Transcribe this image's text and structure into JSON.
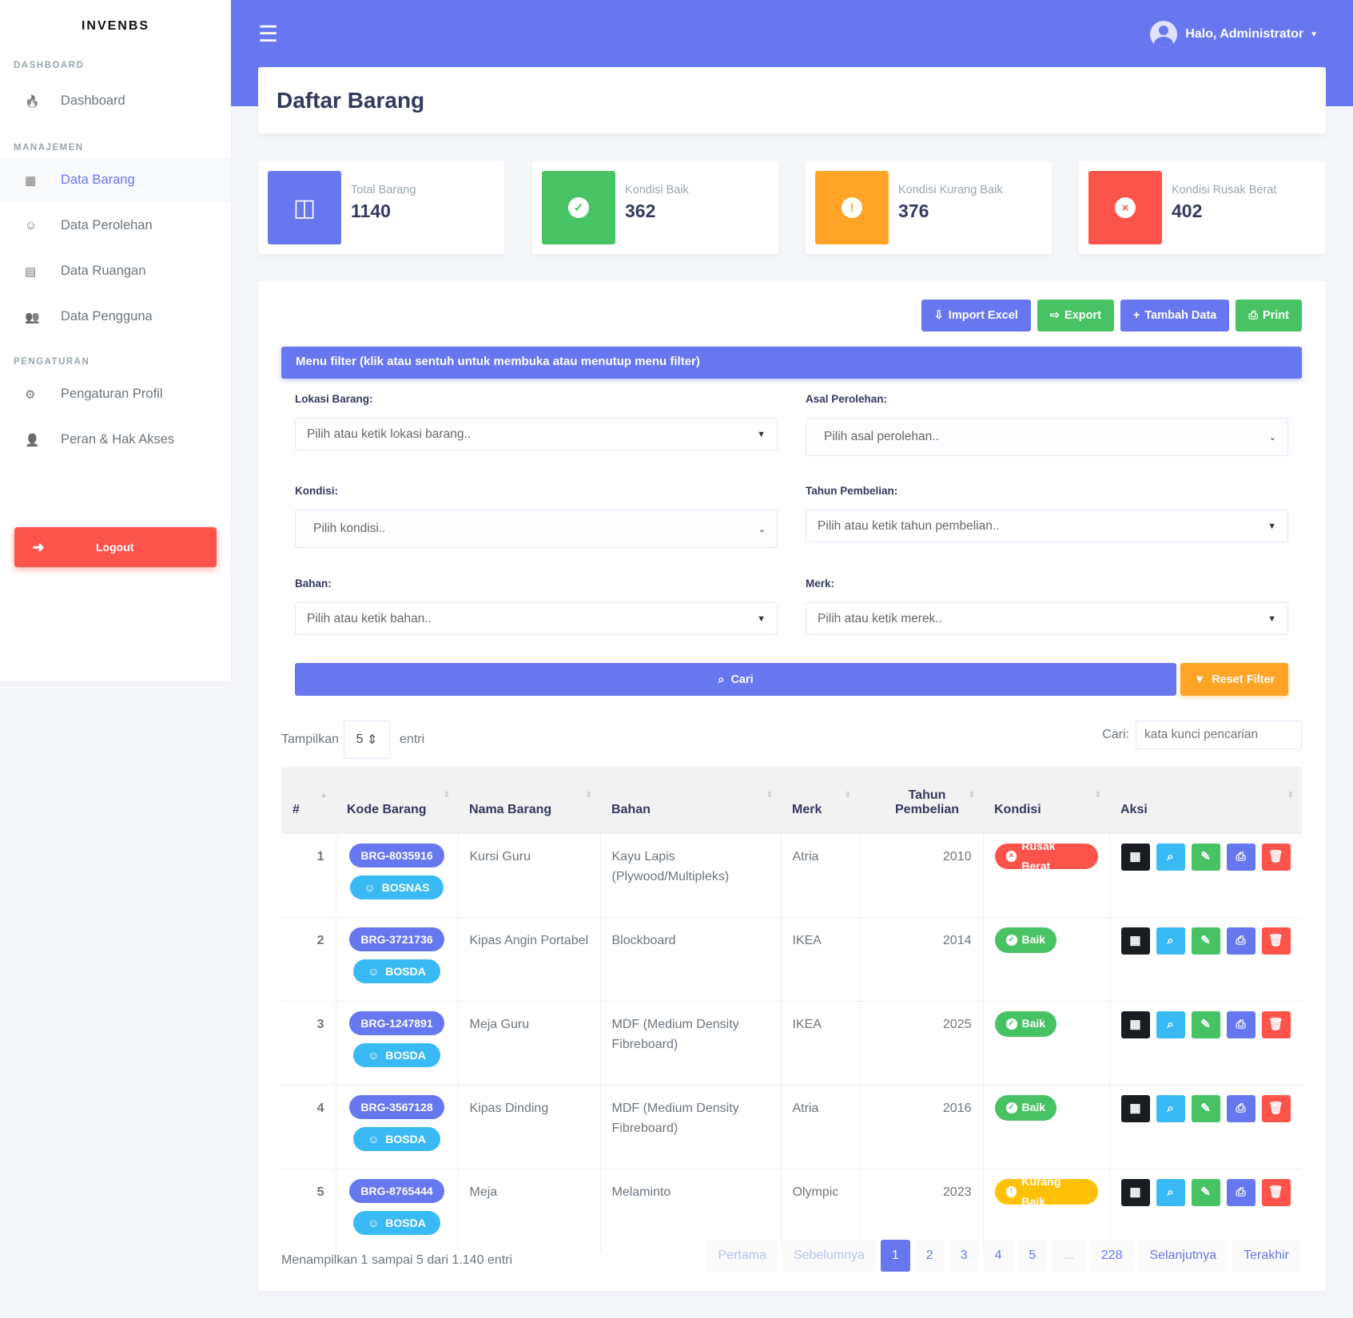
{
  "brand": "INVENBS",
  "sidebar": {
    "sections": [
      {
        "title": "DASHBOARD",
        "items": [
          {
            "label": "Dashboard",
            "icon": "fire-icon"
          }
        ]
      },
      {
        "title": "MANAJEMEN",
        "items": [
          {
            "label": "Data Barang",
            "icon": "boxes-icon"
          },
          {
            "label": "Data Perolehan",
            "icon": "smile-icon"
          },
          {
            "label": "Data Ruangan",
            "icon": "map-icon"
          },
          {
            "label": "Data Pengguna",
            "icon": "users-icon"
          }
        ]
      },
      {
        "title": "PENGATURAN",
        "items": [
          {
            "label": "Pengaturan Profil",
            "icon": "cog-icon"
          },
          {
            "label": "Peran & Hak Akses",
            "icon": "user-lock-icon"
          }
        ]
      }
    ],
    "logout": "Logout"
  },
  "topbar": {
    "user": "Halo, Administrator"
  },
  "page_title": "Daftar Barang",
  "stats": [
    {
      "label": "Total Barang",
      "value": "1140",
      "color": "#6777ef"
    },
    {
      "label": "Kondisi Baik",
      "value": "362",
      "color": "#47c363"
    },
    {
      "label": "Kondisi Kurang Baik",
      "value": "376",
      "color": "#ffa426"
    },
    {
      "label": "Kondisi Rusak Berat",
      "value": "402",
      "color": "#fc544b"
    }
  ],
  "actions": {
    "import": "Import Excel",
    "export": "Export",
    "add": "Tambah Data",
    "print": "Print"
  },
  "filter": {
    "title": "Menu filter (klik atau sentuh untuk membuka atau menutup menu filter)",
    "lokasi_label": "Lokasi Barang:",
    "lokasi_ph": "Pilih atau ketik lokasi barang..",
    "asal_label": "Asal Perolehan:",
    "asal_ph": "Pilih asal perolehan..",
    "kondisi_label": "Kondisi:",
    "kondisi_ph": "Pilih kondisi..",
    "tahun_label": "Tahun Pembelian:",
    "tahun_ph": "Pilih atau ketik tahun pembelian..",
    "bahan_label": "Bahan:",
    "bahan_ph": "Pilih atau ketik bahan..",
    "merk_label": "Merk:",
    "merk_ph": "Pilih atau ketik merek..",
    "search": "Cari",
    "reset": "Reset Filter"
  },
  "table_ctrl": {
    "show": "Tampilkan",
    "length": "5",
    "entries": "entri",
    "search_label": "Cari:",
    "search_ph": "kata kunci pencarian"
  },
  "columns": [
    "#",
    "Kode Barang",
    "Nama Barang",
    "Bahan",
    "Merk",
    "Tahun Pembelian",
    "Kondisi",
    "Aksi"
  ],
  "rows": [
    {
      "no": "1",
      "kode": "BRG-8035916",
      "sumber": "BOSNAS",
      "nama": "Kursi Guru",
      "bahan": "Kayu Lapis (Plywood/Multipleks)",
      "merk": "Atria",
      "tahun": "2010",
      "kondisi": "Rusak Berat"
    },
    {
      "no": "2",
      "kode": "BRG-3721736",
      "sumber": "BOSDA",
      "nama": "Kipas Angin Portabel",
      "bahan": "Blockboard",
      "merk": "IKEA",
      "tahun": "2014",
      "kondisi": "Baik"
    },
    {
      "no": "3",
      "kode": "BRG-1247891",
      "sumber": "BOSDA",
      "nama": "Meja Guru",
      "bahan": "MDF (Medium Density Fibreboard)",
      "merk": "IKEA",
      "tahun": "2025",
      "kondisi": "Baik"
    },
    {
      "no": "4",
      "kode": "BRG-3567128",
      "sumber": "BOSDA",
      "nama": "Kipas Dinding",
      "bahan": "MDF (Medium Density Fibreboard)",
      "merk": "Atria",
      "tahun": "2016",
      "kondisi": "Baik"
    },
    {
      "no": "5",
      "kode": "BRG-8765444",
      "sumber": "BOSDA",
      "nama": "Meja",
      "bahan": "Melaminto",
      "merk": "Olympic",
      "tahun": "2023",
      "kondisi": "Kurang Baik"
    }
  ],
  "info": "Menampilkan 1 sampai 5 dari 1.140 entri",
  "pagination": [
    "Pertama",
    "Sebelumnya",
    "1",
    "2",
    "3",
    "4",
    "5",
    "...",
    "228",
    "Selanjutnya",
    "Terakhir"
  ]
}
